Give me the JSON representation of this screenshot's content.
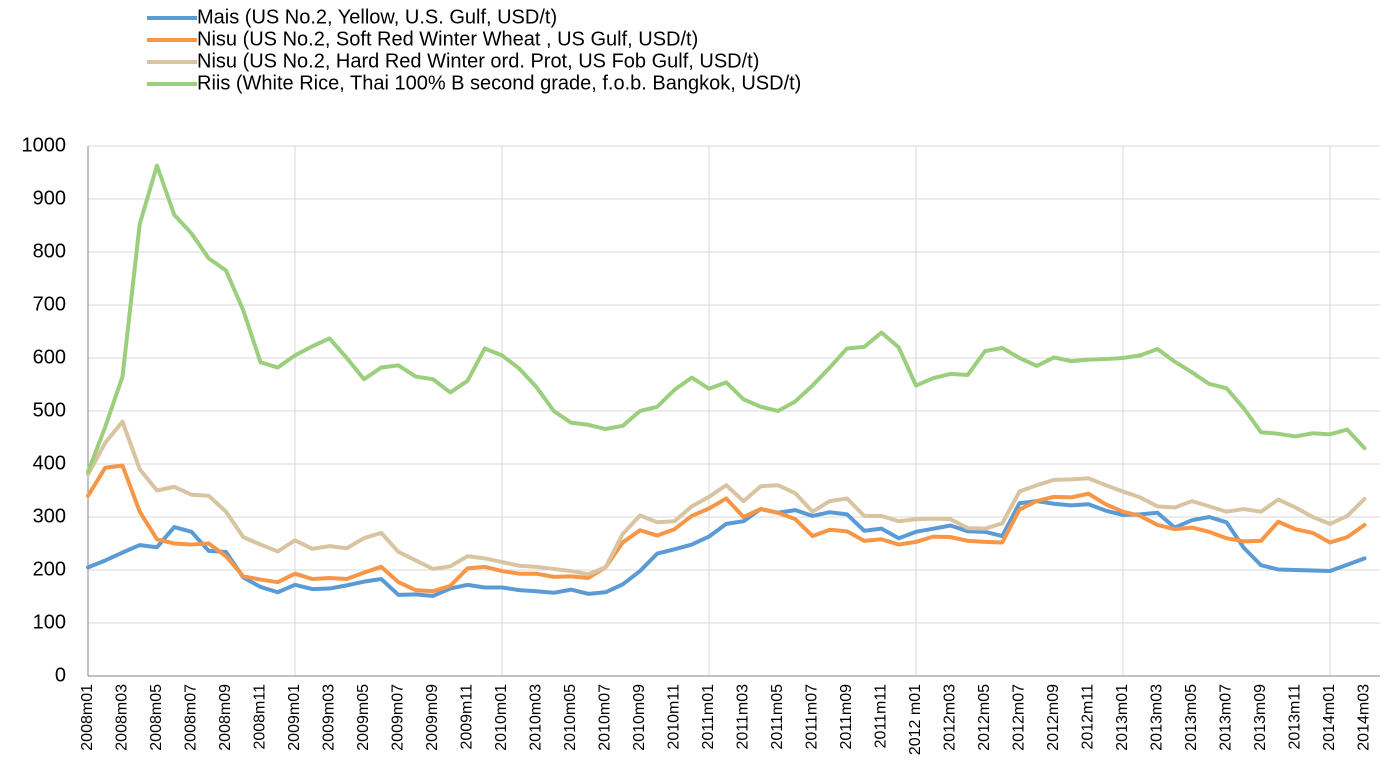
{
  "chart_data": {
    "type": "line",
    "categories": [
      "2008m01",
      null,
      "2008m03",
      null,
      "2008m05",
      null,
      "2008m07",
      null,
      "2008m09",
      null,
      "2008m11",
      null,
      "2009m01",
      null,
      "2009m03",
      null,
      "2009m05",
      null,
      "2009m07",
      null,
      "2009m09",
      null,
      "2009m11",
      null,
      "2010m01",
      null,
      "2010m03",
      null,
      "2010m05",
      null,
      "2010m07",
      null,
      "2010m09",
      null,
      "2010m11",
      null,
      "2011m01",
      null,
      "2011m03",
      null,
      "2011m05",
      null,
      "2011m07",
      null,
      "2011m09",
      null,
      "2011m11",
      null,
      "2012 m01",
      null,
      "2012m03",
      null,
      "2012m05",
      null,
      "2012m07",
      null,
      "2012m09",
      null,
      "2012m11",
      null,
      "2013m01",
      null,
      "2013m03",
      null,
      "2013m05",
      null,
      "2013m07",
      null,
      "2013m09",
      null,
      "2013m11",
      null,
      "2014m01",
      null,
      "2014m03"
    ],
    "series": [
      {
        "name": "Mais (US No.2, Yellow, U.S. Gulf, USD/t)",
        "color": "#5b9bd5",
        "values": [
          205,
          218,
          233,
          247,
          243,
          281,
          272,
          236,
          234,
          186,
          168,
          158,
          172,
          164,
          165,
          171,
          178,
          183,
          153,
          154,
          151,
          165,
          172,
          167,
          167,
          162,
          160,
          157,
          163,
          155,
          158,
          173,
          198,
          231,
          239,
          248,
          263,
          287,
          292,
          315,
          308,
          313,
          302,
          309,
          305,
          274,
          278,
          260,
          272,
          278,
          284,
          273,
          272,
          264,
          326,
          330,
          325,
          322,
          324,
          312,
          304,
          305,
          308,
          280,
          294,
          300,
          290,
          242,
          209,
          201,
          200,
          199,
          198,
          210,
          222
        ]
      },
      {
        "name": "Nisu (US No.2, Soft Red Winter Wheat , US Gulf, USD/t)",
        "color": "#f79646",
        "values": [
          340,
          393,
          397,
          310,
          258,
          250,
          248,
          250,
          226,
          188,
          182,
          177,
          193,
          183,
          185,
          183,
          195,
          206,
          177,
          162,
          160,
          170,
          203,
          206,
          198,
          193,
          193,
          187,
          188,
          185,
          205,
          252,
          275,
          265,
          277,
          302,
          316,
          335,
          300,
          315,
          308,
          296,
          264,
          276,
          273,
          255,
          258,
          248,
          253,
          263,
          262,
          255,
          253,
          252,
          314,
          330,
          338,
          337,
          344,
          324,
          310,
          302,
          285,
          277,
          280,
          272,
          260,
          254,
          255,
          291,
          277,
          270,
          252,
          262,
          285
        ]
      },
      {
        "name": "Nisu (US No.2, Hard Red Winter ord. Prot, US Fob Gulf, USD/t)",
        "color": "#d9c4a2",
        "values": [
          380,
          440,
          480,
          390,
          350,
          357,
          342,
          340,
          310,
          262,
          248,
          235,
          256,
          240,
          245,
          241,
          260,
          270,
          234,
          218,
          202,
          207,
          226,
          222,
          215,
          208,
          206,
          202,
          198,
          192,
          205,
          268,
          303,
          290,
          292,
          320,
          338,
          360,
          330,
          358,
          360,
          345,
          310,
          330,
          335,
          302,
          302,
          292,
          296,
          297,
          296,
          279,
          278,
          288,
          348,
          360,
          370,
          371,
          373,
          360,
          348,
          337,
          320,
          318,
          330,
          320,
          310,
          315,
          310,
          333,
          318,
          300,
          287,
          302,
          334
        ]
      },
      {
        "name": "Riis (White Rice, Thai 100% B second grade, f.o.b. Bangkok, USD/t)",
        "color": "#9bcf7d",
        "values": [
          385,
          470,
          565,
          853,
          963,
          870,
          835,
          788,
          765,
          690,
          592,
          582,
          605,
          622,
          637,
          600,
          560,
          582,
          586,
          565,
          560,
          535,
          557,
          618,
          605,
          580,
          545,
          500,
          478,
          474,
          466,
          472,
          500,
          508,
          540,
          563,
          542,
          554,
          522,
          508,
          500,
          518,
          548,
          582,
          618,
          621,
          648,
          620,
          548,
          562,
          570,
          568,
          613,
          619,
          600,
          585,
          601,
          594,
          597,
          598,
          600,
          605,
          617,
          593,
          573,
          551,
          543,
          505,
          460,
          457,
          452,
          458,
          456,
          465,
          430
        ]
      }
    ],
    "ylim": [
      0,
      1000
    ],
    "yticks": [
      0,
      100,
      200,
      300,
      400,
      500,
      600,
      700,
      800,
      900,
      1000
    ],
    "grid": true
  }
}
